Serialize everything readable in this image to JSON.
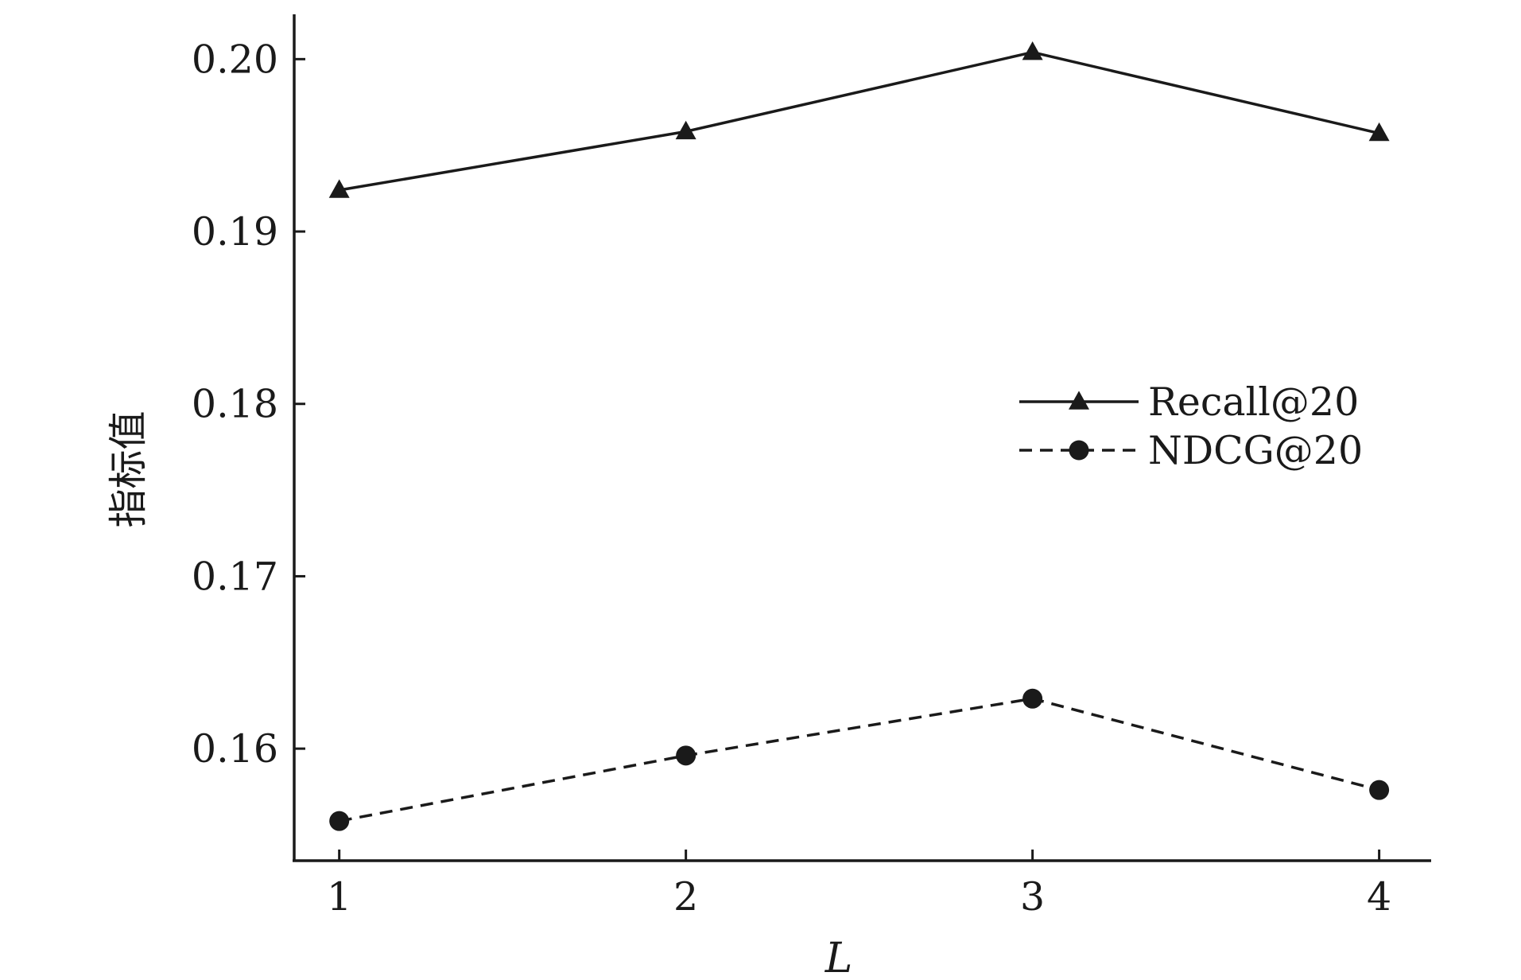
{
  "chart_data": {
    "type": "line",
    "title": "",
    "x": [
      1,
      2,
      3,
      4
    ],
    "x_tick_labels": [
      "1",
      "2",
      "3",
      "4"
    ],
    "y_tick_values": [
      0.16,
      0.17,
      0.18,
      0.19,
      0.2
    ],
    "y_tick_labels": [
      "0.16",
      "0.17",
      "0.18",
      "0.19",
      "0.20"
    ],
    "xlabel": "L",
    "ylabel": "指标值",
    "xlim": [
      0.87,
      4.15
    ],
    "ylim": [
      0.1535,
      0.2026
    ],
    "grid": false,
    "legend_position": "center-right",
    "series": [
      {
        "name": "Recall@20",
        "values": [
          0.1924,
          0.1958,
          0.2004,
          0.1957
        ],
        "marker": "triangle",
        "line_style": "solid",
        "color": "#1a1a1a"
      },
      {
        "name": "NDCG@20",
        "values": [
          0.1558,
          0.1596,
          0.1629,
          0.1576
        ],
        "marker": "circle",
        "line_style": "dashed",
        "color": "#1a1a1a"
      }
    ]
  }
}
